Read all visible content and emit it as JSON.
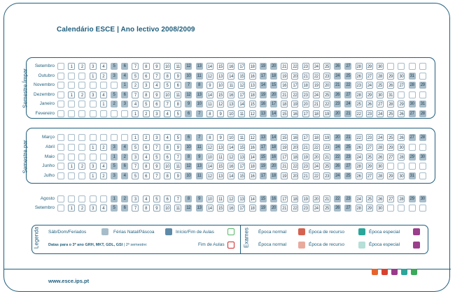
{
  "title": "Calendário ESCE | Ano lectivo 2008/2009",
  "url": "www.esce.ips.pt",
  "colors": {
    "accent": "#1f5e7c",
    "holiday": "#5e8aa8",
    "weekend": "#a7bcc9",
    "start_end": "#56b96a",
    "normal": "#d5624f",
    "recurso": "#e9aa9e",
    "especial": "#2aa69a",
    "accent_dots": [
      "#e8622c",
      "#d9412f",
      "#9a3a8c",
      "#2aa69a",
      "#3aa95a"
    ]
  },
  "semester1_label": "Semestre Ímpar",
  "semester2_label": "Semestre par",
  "months": {
    "s1": [
      {
        "name": "Setembro",
        "days": [
          "",
          "1",
          "2",
          "3",
          "4",
          "5",
          "6",
          "7",
          "8",
          "9",
          "10",
          "11",
          "12",
          "13",
          "14",
          "15",
          "16",
          "17",
          "18",
          "19",
          "20",
          "21",
          "22",
          "23",
          "24",
          "25",
          "26",
          "27",
          "28",
          "29",
          "30",
          "",
          ""
        ]
      },
      {
        "name": "Outubro",
        "days": [
          "",
          "",
          "",
          "1",
          "2",
          "3",
          "4",
          "5",
          "6",
          "7",
          "8",
          "9",
          "10",
          "11",
          "12",
          "13",
          "14",
          "15",
          "16",
          "17",
          "18",
          "19",
          "20",
          "21",
          "22",
          "23",
          "24",
          "25",
          "26",
          "27",
          "28",
          "29",
          "30",
          "31"
        ]
      },
      {
        "name": "Novembro",
        "days": [
          "",
          "",
          "",
          "",
          "",
          "",
          "1",
          "2",
          "3",
          "4",
          "5",
          "6",
          "7",
          "8",
          "9",
          "10",
          "11",
          "12",
          "13",
          "14",
          "15",
          "16",
          "17",
          "18",
          "19",
          "20",
          "21",
          "22",
          "23",
          "24",
          "25",
          "26",
          "27",
          "28",
          "29",
          "30"
        ]
      },
      {
        "name": "Dezembro",
        "days": [
          "",
          "1",
          "2",
          "3",
          "4",
          "5",
          "6",
          "7",
          "8",
          "9",
          "10",
          "11",
          "12",
          "13",
          "14",
          "15",
          "16",
          "17",
          "18",
          "19",
          "20",
          "21",
          "22",
          "23",
          "24",
          "25",
          "26",
          "27",
          "28",
          "29",
          "30",
          "31",
          "",
          ""
        ]
      },
      {
        "name": "Janeiro",
        "days": [
          "",
          "",
          "",
          "",
          "1",
          "2",
          "3",
          "4",
          "5",
          "6",
          "7",
          "8",
          "9",
          "10",
          "11",
          "12",
          "13",
          "14",
          "15",
          "16",
          "17",
          "18",
          "19",
          "20",
          "21",
          "22",
          "23",
          "24",
          "25",
          "26",
          "27",
          "28",
          "29",
          "30",
          "31"
        ]
      },
      {
        "name": "Fevereiro",
        "days": [
          "",
          "",
          "",
          "",
          "",
          "",
          "",
          "1",
          "2",
          "3",
          "4",
          "5",
          "6",
          "7",
          "8",
          "9",
          "10",
          "11",
          "12",
          "13",
          "14",
          "15",
          "16",
          "17",
          "18",
          "19",
          "20",
          "21",
          "22",
          "23",
          "24",
          "25",
          "26",
          "27",
          "28"
        ]
      }
    ],
    "s2": [
      {
        "name": "Março",
        "days": [
          "",
          "",
          "",
          "",
          "",
          "",
          "",
          "1",
          "2",
          "3",
          "4",
          "5",
          "6",
          "7",
          "8",
          "9",
          "10",
          "11",
          "12",
          "13",
          "14",
          "15",
          "16",
          "17",
          "18",
          "19",
          "20",
          "21",
          "22",
          "23",
          "24",
          "25",
          "26",
          "27",
          "28",
          "29",
          "30",
          "31"
        ]
      },
      {
        "name": "Abril",
        "days": [
          "",
          "",
          "",
          "1",
          "2",
          "3",
          "4",
          "5",
          "6",
          "7",
          "8",
          "9",
          "10",
          "11",
          "12",
          "13",
          "14",
          "15",
          "16",
          "17",
          "18",
          "19",
          "20",
          "21",
          "22",
          "23",
          "24",
          "25",
          "26",
          "27",
          "28",
          "29",
          "30"
        ]
      },
      {
        "name": "Maio",
        "days": [
          "",
          "",
          "",
          "",
          "",
          "1",
          "2",
          "3",
          "4",
          "5",
          "6",
          "7",
          "8",
          "9",
          "10",
          "11",
          "12",
          "13",
          "14",
          "15",
          "16",
          "17",
          "18",
          "19",
          "20",
          "21",
          "22",
          "23",
          "24",
          "25",
          "26",
          "27",
          "28",
          "29",
          "30",
          "31"
        ]
      },
      {
        "name": "Junho",
        "days": [
          "",
          "1",
          "2",
          "3",
          "4",
          "5",
          "6",
          "7",
          "8",
          "9",
          "10",
          "11",
          "12",
          "13",
          "14",
          "15",
          "16",
          "17",
          "18",
          "19",
          "20",
          "21",
          "22",
          "23",
          "24",
          "25",
          "26",
          "27",
          "28",
          "29",
          "30"
        ]
      },
      {
        "name": "Julho",
        "days": [
          "",
          "",
          "",
          "1",
          "2",
          "3",
          "4",
          "5",
          "6",
          "7",
          "8",
          "9",
          "10",
          "11",
          "12",
          "13",
          "14",
          "15",
          "16",
          "17",
          "18",
          "19",
          "20",
          "21",
          "22",
          "23",
          "24",
          "25",
          "26",
          "27",
          "28",
          "29",
          "30",
          "31"
        ]
      }
    ],
    "s3": [
      {
        "name": "Agosto",
        "days": [
          "",
          "",
          "",
          "",
          "",
          "1",
          "2",
          "3",
          "4",
          "5",
          "6",
          "7",
          "8",
          "9",
          "10",
          "11",
          "12",
          "13",
          "14",
          "15",
          "16",
          "17",
          "18",
          "19",
          "20",
          "21",
          "22",
          "23",
          "24",
          "25",
          "26",
          "27",
          "28",
          "29",
          "30",
          "31"
        ]
      },
      {
        "name": "Setembro",
        "days": [
          "",
          "1",
          "2",
          "3",
          "4",
          "5",
          "6",
          "7",
          "8",
          "9",
          "10",
          "11",
          "12",
          "13",
          "14",
          "15",
          "16",
          "17",
          "18",
          "19",
          "20",
          "21",
          "22",
          "23",
          "24",
          "25",
          "26",
          "27",
          "28",
          "29",
          "30"
        ]
      }
    ]
  },
  "legend": {
    "title": "Legenda",
    "sab": "Sáb/Dom/Feriados",
    "ferias": "Férias Natal/Páscoa",
    "inicio": "Início/Fim de Aulas",
    "exames": "Exames",
    "normal": "Época normal",
    "recurso": "Época de recurso",
    "especial": "Época especial",
    "note_bold": "Datas para o 3º ano GRH, MKT, GDL, GSI",
    "note_rest": "| 2º semestre:",
    "fim": "Fim de Aulas"
  }
}
